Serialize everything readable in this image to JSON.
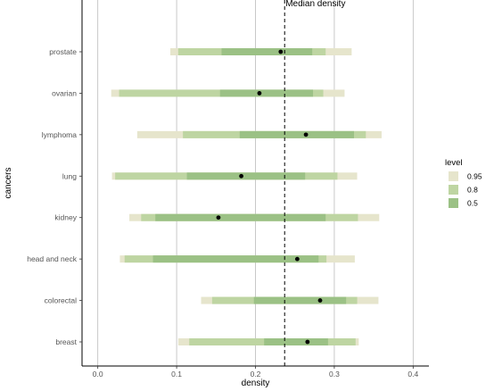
{
  "chart_data": {
    "type": "interval",
    "xlabel": "density",
    "ylabel": "cancers",
    "xlim": [
      -0.02,
      0.42
    ],
    "xticks": [
      0.0,
      0.1,
      0.2,
      0.3,
      0.4
    ],
    "xtick_labels": [
      "0.0",
      "0.1",
      "0.2",
      "0.3",
      "0.4"
    ],
    "grid": "vertical major",
    "categories": [
      "breast",
      "colorectal",
      "head and neck",
      "kidney",
      "lung",
      "lymphoma",
      "ovarian",
      "prostate"
    ],
    "levels": [
      {
        "label": "0.95",
        "color": "#e6e5cc"
      },
      {
        "label": "0.8",
        "color": "#bed5a2"
      },
      {
        "label": "0.5",
        "color": "#9bc185"
      }
    ],
    "legend_title": "level",
    "legend_position": "right",
    "intervals": [
      {
        "category": "breast",
        "median": 0.266,
        "i95": [
          0.102,
          0.331
        ],
        "i80": [
          0.116,
          0.327
        ],
        "i50": [
          0.211,
          0.292
        ]
      },
      {
        "category": "colorectal",
        "median": 0.282,
        "i95": [
          0.131,
          0.356
        ],
        "i80": [
          0.145,
          0.329
        ],
        "i50": [
          0.198,
          0.315
        ]
      },
      {
        "category": "head and neck",
        "median": 0.253,
        "i95": [
          0.028,
          0.326
        ],
        "i80": [
          0.034,
          0.29
        ],
        "i50": [
          0.07,
          0.28
        ]
      },
      {
        "category": "kidney",
        "median": 0.153,
        "i95": [
          0.04,
          0.357
        ],
        "i80": [
          0.055,
          0.33
        ],
        "i50": [
          0.073,
          0.289
        ]
      },
      {
        "category": "lung",
        "median": 0.182,
        "i95": [
          0.018,
          0.329
        ],
        "i80": [
          0.022,
          0.304
        ],
        "i50": [
          0.113,
          0.263
        ]
      },
      {
        "category": "lymphoma",
        "median": 0.264,
        "i95": [
          0.05,
          0.36
        ],
        "i80": [
          0.108,
          0.34
        ],
        "i50": [
          0.18,
          0.325
        ]
      },
      {
        "category": "ovarian",
        "median": 0.205,
        "i95": [
          0.017,
          0.313
        ],
        "i80": [
          0.027,
          0.286
        ],
        "i50": [
          0.155,
          0.273
        ]
      },
      {
        "category": "prostate",
        "median": 0.232,
        "i95": [
          0.092,
          0.322
        ],
        "i80": [
          0.102,
          0.289
        ],
        "i50": [
          0.157,
          0.272
        ]
      }
    ],
    "reference_line": {
      "x": 0.237,
      "style": "dashed",
      "label": "Median density"
    }
  }
}
